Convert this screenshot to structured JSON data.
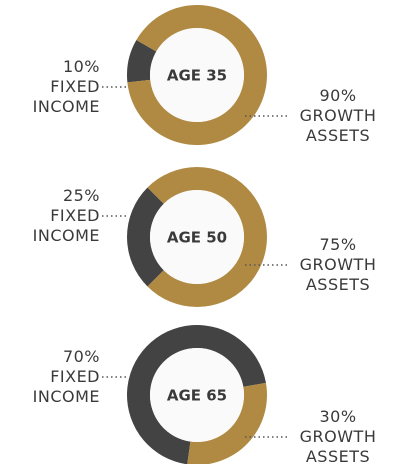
{
  "chart_data": [
    {
      "type": "pie",
      "title": "AGE 35",
      "categories": [
        "FIXED INCOME",
        "GROWTH ASSETS"
      ],
      "values": [
        10,
        90
      ],
      "value_labels": [
        "10%",
        "90%"
      ],
      "colors": [
        "#434343",
        "#b08a43"
      ]
    },
    {
      "type": "pie",
      "title": "AGE 50",
      "categories": [
        "FIXED INCOME",
        "GROWTH ASSETS"
      ],
      "values": [
        25,
        75
      ],
      "value_labels": [
        "25%",
        "75%"
      ],
      "colors": [
        "#434343",
        "#b08a43"
      ]
    },
    {
      "type": "pie",
      "title": "AGE 65",
      "categories": [
        "FIXED INCOME",
        "GROWTH ASSETS"
      ],
      "values": [
        70,
        30
      ],
      "value_labels": [
        "70%",
        "30%"
      ],
      "colors": [
        "#434343",
        "#b08a43"
      ]
    }
  ]
}
